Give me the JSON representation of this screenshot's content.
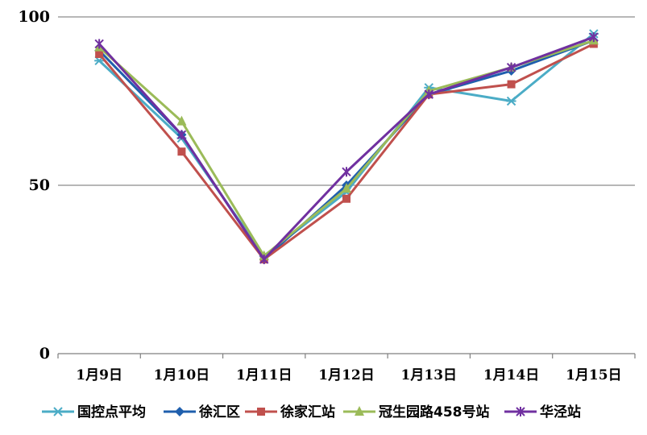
{
  "chart_data": {
    "type": "line",
    "title": "",
    "xlabel": "",
    "ylabel": "",
    "categories": [
      "1月9日",
      "1月10日",
      "1月11日",
      "1月12日",
      "1月13日",
      "1月14日",
      "1月15日"
    ],
    "ylim": [
      0,
      100
    ],
    "yticks": [
      0,
      50,
      100
    ],
    "grid": true,
    "legend": "bottom",
    "series": [
      {
        "name": "国控点平均",
        "color": "#4bacc6",
        "marker": "asterisk",
        "values": [
          87,
          64,
          29,
          48,
          79,
          75,
          95
        ]
      },
      {
        "name": "徐汇区",
        "color": "#1f5fad",
        "marker": "diamond",
        "values": [
          90,
          65,
          28,
          50,
          77,
          84,
          93
        ]
      },
      {
        "name": "徐家汇站",
        "color": "#c0504d",
        "marker": "square",
        "values": [
          89,
          60,
          28,
          46,
          77,
          80,
          92
        ]
      },
      {
        "name": "冠生园路458号站",
        "color": "#9bbb59",
        "marker": "triangle",
        "values": [
          91,
          69,
          29,
          49,
          78,
          85,
          93
        ]
      },
      {
        "name": "华泾站",
        "color": "#7030a0",
        "marker": "star",
        "values": [
          92,
          65,
          28,
          54,
          77,
          85,
          94
        ]
      }
    ]
  }
}
